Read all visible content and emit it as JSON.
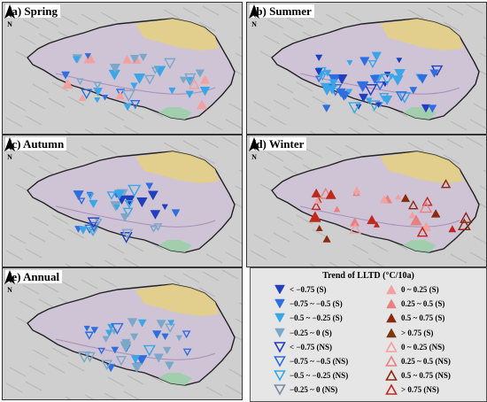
{
  "panels": [
    {
      "label": "(a) Spring"
    },
    {
      "label": "(b) Summer"
    },
    {
      "label": "(c) Autumn"
    },
    {
      "label": "(d) Winter"
    },
    {
      "label": "(e) Annual"
    }
  ],
  "north_label": "N",
  "legend": {
    "title": "Trend of LLTD (°C/10a)",
    "left_items": [
      {
        "label": "< −0.75 (S)",
        "shape": "down-filled",
        "color": "#1f3fbf"
      },
      {
        "label": "−0.75 ~ −0.5 (S)",
        "shape": "down-filled",
        "color": "#2f6ee0"
      },
      {
        "label": "−0.5 ~ −0.25 (S)",
        "shape": "down-filled",
        "color": "#3aa6e8"
      },
      {
        "label": "−0.25 ~ 0 (S)",
        "shape": "down-filled",
        "color": "#7aa8c8"
      },
      {
        "label": "< −0.75 (NS)",
        "shape": "down-hollow",
        "color": "#1f3fbf"
      },
      {
        "label": "−0.75 ~ −0.5 (NS)",
        "shape": "down-hollow",
        "color": "#2f6ee0"
      },
      {
        "label": "−0.5 ~ −0.25 (NS)",
        "shape": "down-hollow",
        "color": "#3aa6e8"
      },
      {
        "label": "−0.25 ~ 0 (NS)",
        "shape": "down-hollow",
        "color": "#7a8ca8"
      }
    ],
    "right_items": [
      {
        "label": "0 ~ 0.25 (S)",
        "shape": "up-filled",
        "color": "#f2a0a0"
      },
      {
        "label": "0.25 ~ 0.5 (S)",
        "shape": "up-filled",
        "color": "#e88080"
      },
      {
        "label": "0.5 ~ 0.75 (S)",
        "shape": "up-filled",
        "color": "#8b2a10"
      },
      {
        "label": "> 0.75 (S)",
        "shape": "up-filled",
        "color": "#7a3a10"
      },
      {
        "label": "0 ~ 0.25 (NS)",
        "shape": "up-hollow",
        "color": "#f2a0a0"
      },
      {
        "label": "0.25 ~ 0.5 (NS)",
        "shape": "up-hollow",
        "color": "#e88080"
      },
      {
        "label": "0.5 ~ 0.75 (NS)",
        "shape": "up-hollow",
        "color": "#8b2a10"
      },
      {
        "label": "> 0.75 (NS)",
        "shape": "up-hollow",
        "color": "#c0281c"
      }
    ]
  }
}
